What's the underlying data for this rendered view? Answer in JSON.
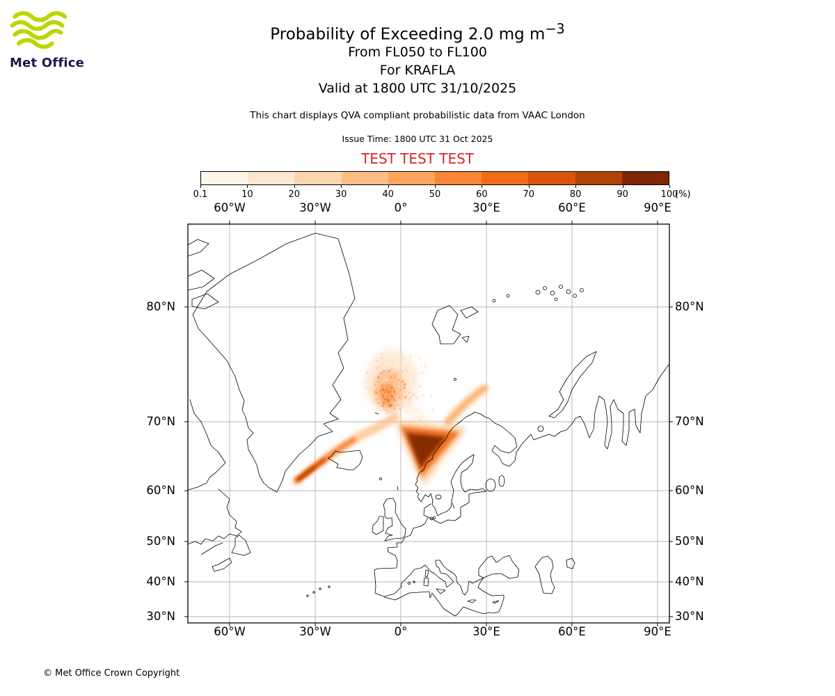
{
  "logo": {
    "brand": "Met Office",
    "wave_color": "#BCD600",
    "text_color": "#1A1A4E"
  },
  "header": {
    "title_main": "Probability of Exceeding 2.0 mg m",
    "title_sup": "−3",
    "line_fl": "From FL050 to FL100",
    "line_volcano": "For KRAFLA",
    "line_valid": "Valid at 1800 UTC 31/10/2025",
    "qva_note": "This chart displays QVA compliant probabilistic data from VAAC London",
    "issue_time": "Issue Time: 1800 UTC 31 Oct 2025",
    "test_label": "TEST TEST TEST",
    "test_color": "#D62728"
  },
  "colorbar": {
    "tick_labels": [
      "0.1",
      "10",
      "20",
      "30",
      "40",
      "50",
      "60",
      "70",
      "80",
      "90",
      "100"
    ],
    "unit": "(%)",
    "segment_colors": [
      "#FFF5EB",
      "#FEE8D2",
      "#FDD5AE",
      "#FDBE85",
      "#FDA55E",
      "#F98537",
      "#F06B17",
      "#D9550A",
      "#B14304",
      "#7F2704"
    ]
  },
  "map": {
    "grid_color": "#9A9A9A",
    "top_lon_labels": [
      "60°W",
      "30°W",
      "0°",
      "30°E",
      "60°E",
      "90°E"
    ],
    "bottom_lon_labels": [
      "60°W",
      "30°W",
      "0°",
      "30°E",
      "60°E",
      "90°E"
    ],
    "left_lat_labels": [
      "80°N",
      "70°N",
      "60°N",
      "50°N",
      "40°N",
      "30°N"
    ],
    "right_lat_labels": [
      "80°N",
      "70°N",
      "60°N",
      "50°N",
      "40°N",
      "30°N"
    ],
    "plumes": [
      {
        "region": "Greenland Sea north of Iceland",
        "character": "diffuse speckled patch",
        "approx_max_pct": 60
      },
      {
        "region": "arc from southwest of Iceland curving northeast",
        "character": "narrow curved band",
        "approx_max_pct": 90
      },
      {
        "region": "Norwegian coast (Lofoten area)",
        "character": "dense dark concentration",
        "approx_max_pct": 100
      }
    ]
  },
  "footer": {
    "copyright": "© Met Office Crown Copyright"
  }
}
